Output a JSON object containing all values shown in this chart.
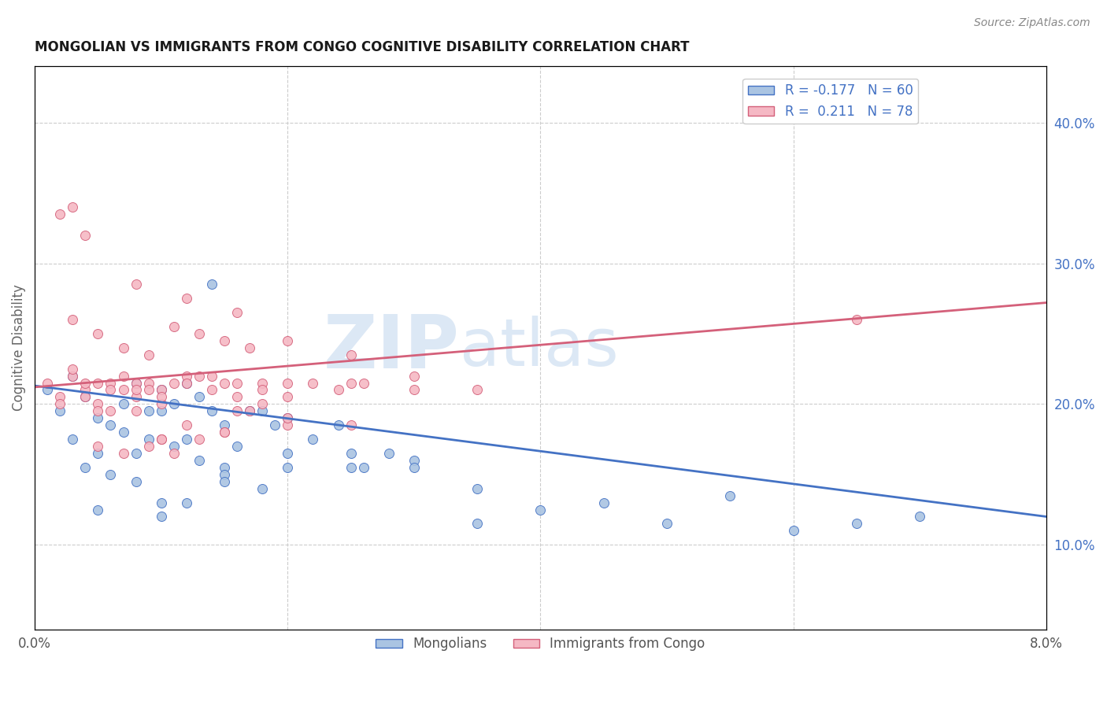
{
  "title": "MONGOLIAN VS IMMIGRANTS FROM CONGO COGNITIVE DISABILITY CORRELATION CHART",
  "source": "Source: ZipAtlas.com",
  "ylabel": "Cognitive Disability",
  "x_tick_positions": [
    0.0,
    0.02,
    0.04,
    0.06,
    0.08
  ],
  "x_tick_labels": [
    "0.0%",
    "",
    "",
    "",
    "8.0%"
  ],
  "y_ticks_right": [
    0.1,
    0.2,
    0.3,
    0.4
  ],
  "y_tick_labels_right": [
    "10.0%",
    "20.0%",
    "30.0%",
    "40.0%"
  ],
  "xlim": [
    0.0,
    0.08
  ],
  "ylim": [
    0.04,
    0.44
  ],
  "mongolian_R": -0.177,
  "mongolian_N": 60,
  "congo_R": 0.211,
  "congo_N": 78,
  "mongolian_color": "#aac4e2",
  "congo_color": "#f5b8c4",
  "mongolian_edge_color": "#4472c4",
  "congo_edge_color": "#d4607a",
  "mongolian_line_color": "#4472c4",
  "congo_line_color": "#d4607a",
  "watermark_text": "ZIPatlas",
  "watermark_color": "#dce8f5",
  "background_color": "#ffffff",
  "grid_color": "#cccccc",
  "title_color": "#1a1a1a",
  "ylabel_color": "#666666",
  "right_tick_color": "#4472c4",
  "source_color": "#888888",
  "mongolian_x": [
    0.001,
    0.002,
    0.003,
    0.004,
    0.005,
    0.006,
    0.007,
    0.008,
    0.009,
    0.01,
    0.011,
    0.012,
    0.013,
    0.014,
    0.015,
    0.003,
    0.005,
    0.007,
    0.009,
    0.011,
    0.013,
    0.015,
    0.017,
    0.019,
    0.008,
    0.006,
    0.004,
    0.012,
    0.016,
    0.018,
    0.02,
    0.022,
    0.024,
    0.026,
    0.028,
    0.03,
    0.014,
    0.01,
    0.008,
    0.018,
    0.02,
    0.015,
    0.012,
    0.01,
    0.025,
    0.03,
    0.035,
    0.04,
    0.05,
    0.06,
    0.065,
    0.07,
    0.045,
    0.055,
    0.035,
    0.025,
    0.02,
    0.015,
    0.01,
    0.005
  ],
  "mongolian_y": [
    0.21,
    0.195,
    0.22,
    0.205,
    0.19,
    0.185,
    0.2,
    0.215,
    0.195,
    0.21,
    0.2,
    0.215,
    0.205,
    0.195,
    0.185,
    0.175,
    0.165,
    0.18,
    0.175,
    0.17,
    0.16,
    0.155,
    0.195,
    0.185,
    0.165,
    0.15,
    0.155,
    0.175,
    0.17,
    0.195,
    0.19,
    0.175,
    0.185,
    0.155,
    0.165,
    0.16,
    0.285,
    0.195,
    0.145,
    0.14,
    0.155,
    0.15,
    0.13,
    0.12,
    0.165,
    0.155,
    0.14,
    0.125,
    0.115,
    0.11,
    0.115,
    0.12,
    0.13,
    0.135,
    0.115,
    0.155,
    0.165,
    0.145,
    0.13,
    0.125
  ],
  "congo_x": [
    0.001,
    0.002,
    0.003,
    0.004,
    0.005,
    0.006,
    0.007,
    0.008,
    0.009,
    0.01,
    0.003,
    0.005,
    0.007,
    0.009,
    0.011,
    0.013,
    0.015,
    0.004,
    0.006,
    0.008,
    0.01,
    0.012,
    0.014,
    0.016,
    0.018,
    0.003,
    0.005,
    0.007,
    0.009,
    0.011,
    0.013,
    0.015,
    0.017,
    0.002,
    0.004,
    0.006,
    0.008,
    0.01,
    0.012,
    0.014,
    0.016,
    0.018,
    0.02,
    0.022,
    0.024,
    0.026,
    0.016,
    0.018,
    0.02,
    0.015,
    0.012,
    0.01,
    0.008,
    0.025,
    0.03,
    0.02,
    0.015,
    0.01,
    0.005,
    0.003,
    0.002,
    0.004,
    0.008,
    0.012,
    0.016,
    0.02,
    0.025,
    0.03,
    0.035,
    0.065,
    0.005,
    0.007,
    0.009,
    0.011,
    0.013,
    0.017,
    0.02,
    0.025
  ],
  "congo_y": [
    0.215,
    0.205,
    0.22,
    0.21,
    0.2,
    0.215,
    0.21,
    0.205,
    0.215,
    0.2,
    0.225,
    0.215,
    0.22,
    0.21,
    0.215,
    0.22,
    0.215,
    0.215,
    0.21,
    0.215,
    0.21,
    0.22,
    0.21,
    0.205,
    0.215,
    0.26,
    0.25,
    0.24,
    0.235,
    0.255,
    0.25,
    0.245,
    0.24,
    0.2,
    0.205,
    0.195,
    0.21,
    0.205,
    0.215,
    0.22,
    0.215,
    0.21,
    0.215,
    0.215,
    0.21,
    0.215,
    0.195,
    0.2,
    0.205,
    0.18,
    0.185,
    0.175,
    0.195,
    0.215,
    0.21,
    0.185,
    0.18,
    0.175,
    0.195,
    0.34,
    0.335,
    0.32,
    0.285,
    0.275,
    0.265,
    0.245,
    0.235,
    0.22,
    0.21,
    0.26,
    0.17,
    0.165,
    0.17,
    0.165,
    0.175,
    0.195,
    0.19,
    0.185
  ]
}
